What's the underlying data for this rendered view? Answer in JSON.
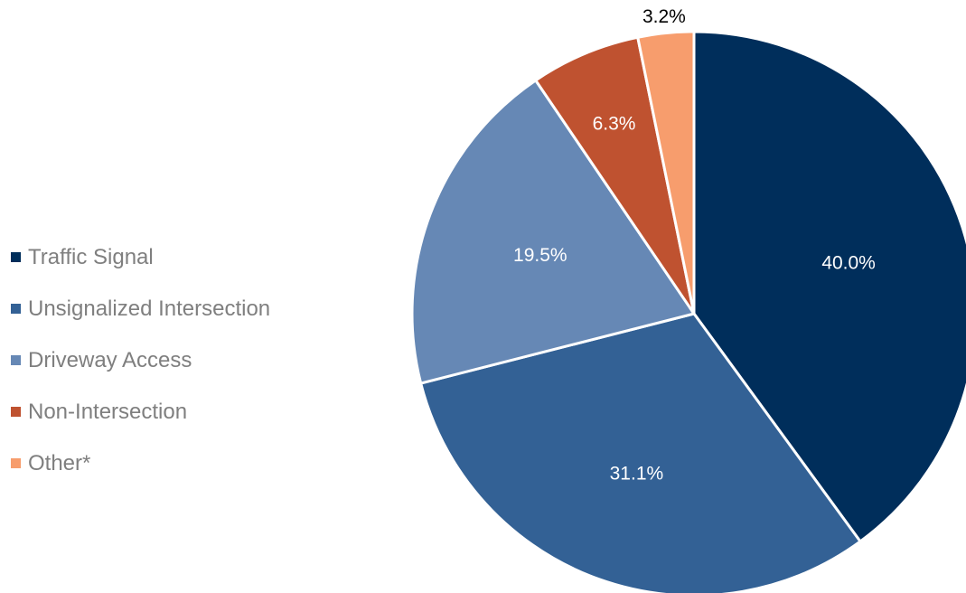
{
  "chart_data": {
    "type": "pie",
    "categories": [
      "Traffic Signal",
      "Unsignalized Intersection",
      "Driveway Access",
      "Non-Intersection",
      "Other*"
    ],
    "values": [
      40.0,
      31.1,
      19.5,
      6.3,
      3.2
    ],
    "labels": [
      "40.0%",
      "31.1%",
      "19.5%",
      "6.3%",
      "3.2%"
    ],
    "colors": [
      "#002e5b",
      "#336195",
      "#6688b5",
      "#bf5230",
      "#f79d6d"
    ],
    "label_colors": [
      "#ffffff",
      "#ffffff",
      "#ffffff",
      "#ffffff",
      "#000000"
    ],
    "start_angle_deg": 0,
    "direction": "clockwise",
    "legend_position": "left",
    "title": ""
  }
}
